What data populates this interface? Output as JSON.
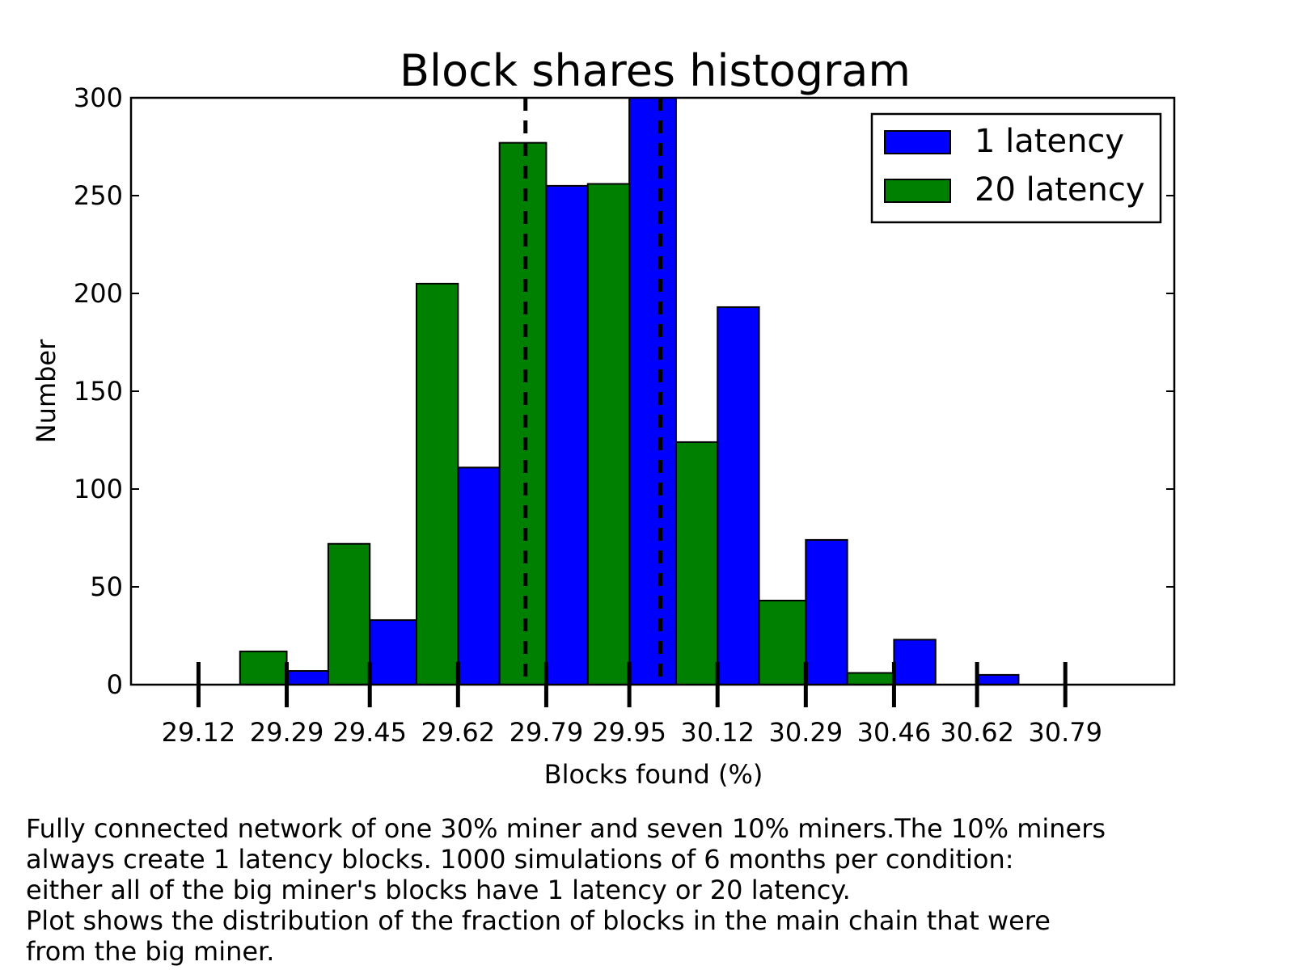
{
  "chart_data": {
    "type": "bar",
    "title": "Block shares histogram",
    "xlabel": "Blocks found (%)",
    "ylabel": "Number",
    "ylim": [
      0,
      300
    ],
    "xlim": [
      28.99,
      31.0
    ],
    "yticks": [
      0,
      50,
      100,
      150,
      200,
      250,
      300
    ],
    "xticks": [
      29.12,
      29.29,
      29.45,
      29.62,
      29.79,
      29.95,
      30.12,
      30.29,
      30.46,
      30.62,
      30.79
    ],
    "xtick_labels": [
      "29.12",
      "29.29",
      "29.45",
      "29.62",
      "29.79",
      "29.95",
      "30.12",
      "30.29",
      "30.46",
      "30.62",
      "30.79"
    ],
    "legend_position": "top-right",
    "grid": false,
    "series": [
      {
        "name": "1 latency",
        "color": "#0000ff",
        "bins": [
          {
            "x0": 29.12,
            "x1": 29.2,
            "value": 0
          },
          {
            "x0": 29.29,
            "x1": 29.37,
            "value": 7
          },
          {
            "x0": 29.45,
            "x1": 29.54,
            "value": 33
          },
          {
            "x0": 29.62,
            "x1": 29.7,
            "value": 111
          },
          {
            "x0": 29.79,
            "x1": 29.87,
            "value": 255
          },
          {
            "x0": 29.95,
            "x1": 30.04,
            "value": 300
          },
          {
            "x0": 30.12,
            "x1": 30.2,
            "value": 193
          },
          {
            "x0": 30.29,
            "x1": 30.37,
            "value": 74
          },
          {
            "x0": 30.46,
            "x1": 30.54,
            "value": 23
          },
          {
            "x0": 30.62,
            "x1": 30.7,
            "value": 5
          }
        ]
      },
      {
        "name": "20 latency",
        "color": "#008000",
        "bins": [
          {
            "x0": 29.2,
            "x1": 29.29,
            "value": 17
          },
          {
            "x0": 29.37,
            "x1": 29.45,
            "value": 72
          },
          {
            "x0": 29.54,
            "x1": 29.62,
            "value": 205
          },
          {
            "x0": 29.7,
            "x1": 29.79,
            "value": 277
          },
          {
            "x0": 29.87,
            "x1": 29.95,
            "value": 256
          },
          {
            "x0": 30.04,
            "x1": 30.12,
            "value": 124
          },
          {
            "x0": 30.2,
            "x1": 30.29,
            "value": 43
          },
          {
            "x0": 30.37,
            "x1": 30.46,
            "value": 6
          }
        ]
      }
    ],
    "mean_lines": [
      29.75,
      30.01
    ]
  },
  "caption": {
    "lines": [
      "Fully connected network of one 30% miner and seven 10% miners.The 10% miners",
      "always create 1 latency blocks. 1000 simulations of 6 months per condition:",
      "either all of the big miner's blocks have 1 latency or 20 latency.",
      "Plot shows the distribution of the fraction of blocks in the main chain that were",
      "from the big miner."
    ]
  }
}
